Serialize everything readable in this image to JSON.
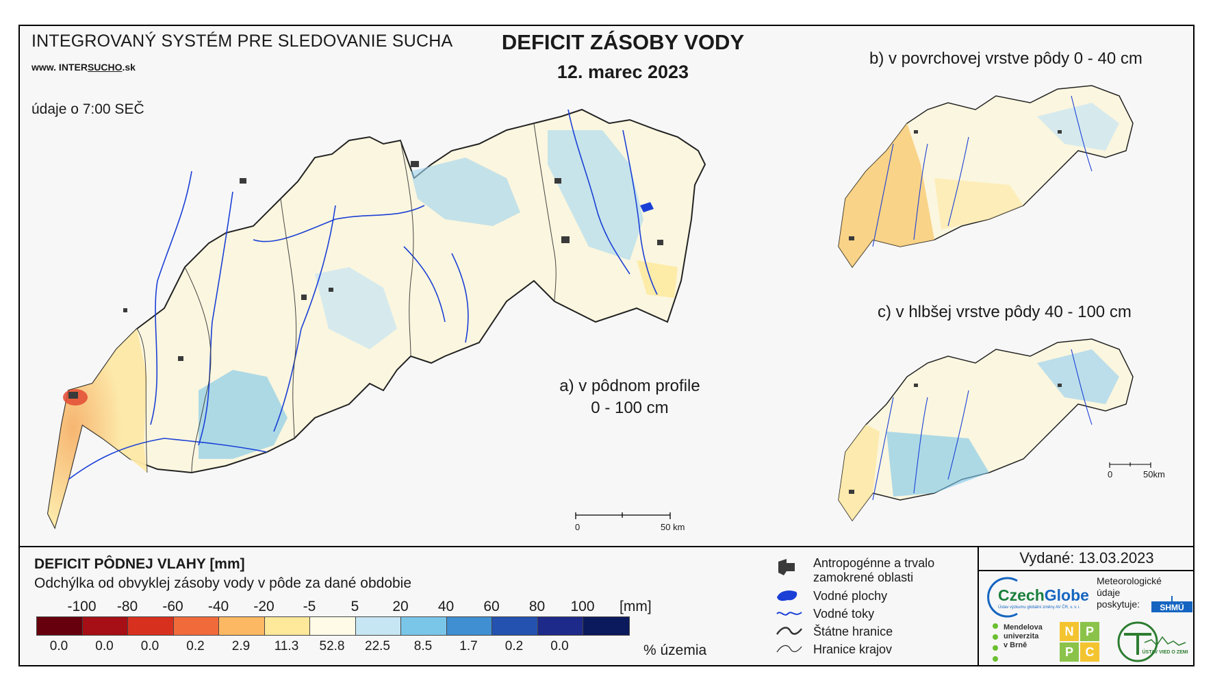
{
  "header": {
    "system_title": "INTEGROVANÝ SYSTÉM PRE SLEDOVANIE SUCHA",
    "website_prefix": "www. INTER",
    "website_sucho": "SUCHO",
    "website_suffix": ".sk",
    "time_note": "údaje o 7:00 SEČ",
    "main_title": "DEFICIT ZÁSOBY VODY",
    "date": "12. marec 2023"
  },
  "maps": {
    "a_label_line1": "a) v pôdnom profile",
    "a_label_line2": "0 - 100 cm",
    "b_label": "b) v povrchovej vrstve pôdy 0 - 40 cm",
    "c_label": "c) v hlbšej vrstve pôdy 40 - 100 cm",
    "scale_main": {
      "start": "0",
      "end": "50 km"
    },
    "scale_small": {
      "start": "0",
      "end": "50km"
    }
  },
  "legend": {
    "title": "DEFICIT PÔDNEJ VLAHY [mm]",
    "subtitle": "Odchýlka od obvyklej zásoby vody v pôde za dané obdobie",
    "ticks": [
      "-100",
      "-80",
      "-60",
      "-40",
      "-20",
      "-5",
      "5",
      "20",
      "40",
      "60",
      "80",
      "100"
    ],
    "unit": "[mm]",
    "colors": [
      "#67000d",
      "#a50f15",
      "#d7301f",
      "#f16b3a",
      "#fdb863",
      "#fee89a",
      "#fffbe6",
      "#c6e6f4",
      "#7ac6e9",
      "#3f8fd2",
      "#2452b0",
      "#1e2a8a",
      "#0b1a5c"
    ],
    "percentages": [
      "0.0",
      "0.0",
      "0.0",
      "0.2",
      "2.9",
      "11.3",
      "52.8",
      "22.5",
      "8.5",
      "1.7",
      "0.2",
      "0.0"
    ],
    "percent_label": "% územia",
    "symbols": [
      {
        "icon": "urban-area-icon",
        "label_line1": "Antropogénne a trvalo",
        "label_line2": "zamokrené oblasti"
      },
      {
        "icon": "water-body-icon",
        "label": "Vodné plochy"
      },
      {
        "icon": "river-icon",
        "label": "Vodné toky"
      },
      {
        "icon": "state-border-icon",
        "label": "Štátne hranice"
      },
      {
        "icon": "region-border-icon",
        "label": "Hranice krajov"
      }
    ]
  },
  "credits": {
    "issued": "Vydané: 13.03.2023",
    "czechglobe_a": "Czech",
    "czechglobe_b": "Globe",
    "czechglobe_sub": "Ústav výzkumu globální změny AV ČR, v. v. i.",
    "meteo_l1": "Meteorologické",
    "meteo_l2": "údaje",
    "meteo_l3": "poskytuje:",
    "shmu": "SHMÚ",
    "mendel_l1": "Mendelova",
    "mendel_l2": "univerzita",
    "mendel_l3": "v Brně",
    "nppc": [
      "N",
      "P",
      "P",
      "C"
    ],
    "uvz": "ÚSTAV VIED O ZEMI"
  },
  "colors": {
    "river": "#1a3fd6",
    "urban": "#3a3a3a",
    "border": "#333333"
  }
}
